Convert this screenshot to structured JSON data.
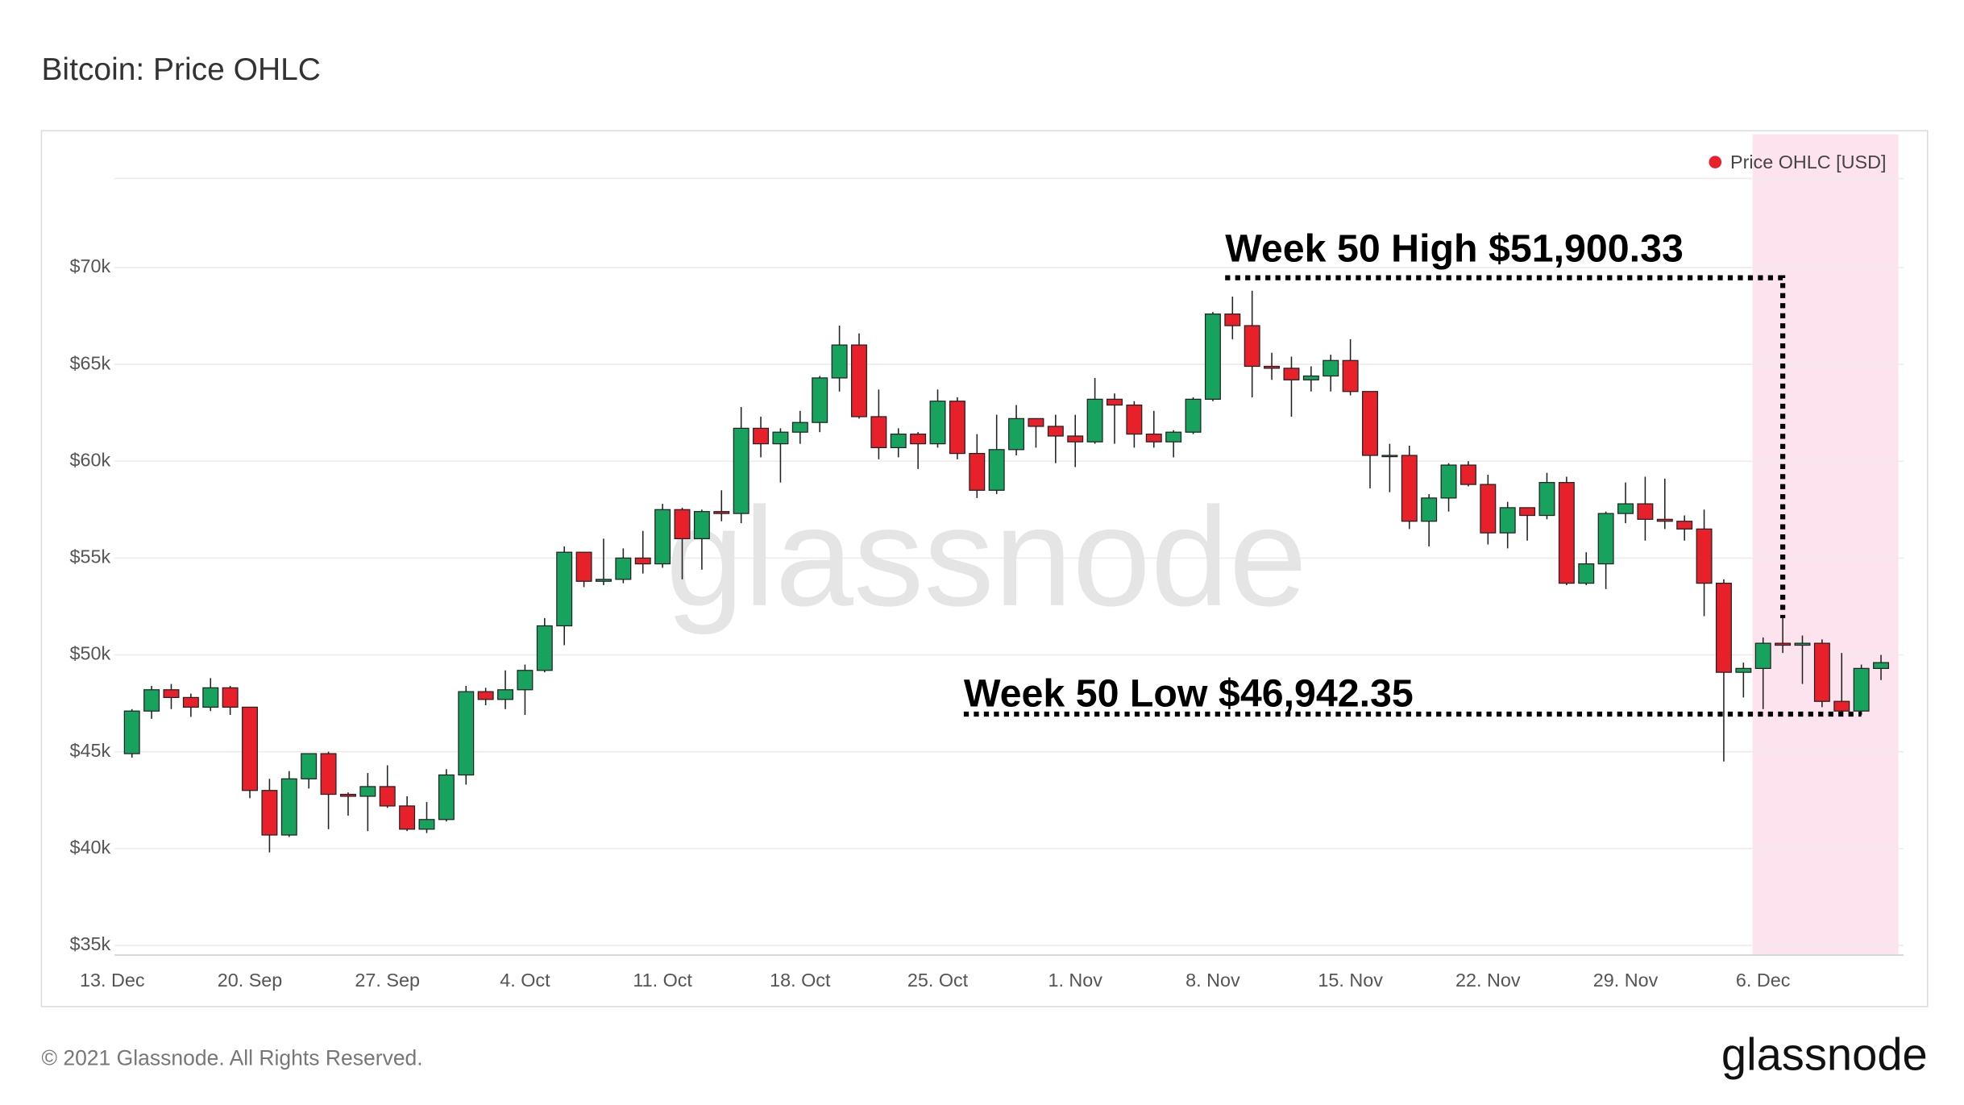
{
  "chart_data": {
    "type": "candlestick",
    "title": "Bitcoin: Price OHLC",
    "watermark": "glassnode",
    "footer": "© 2021 Glassnode. All Rights Reserved.",
    "logo": "glassnode",
    "x": [
      "14. Sep",
      "15. Sep",
      "16. Sep",
      "17. Sep",
      "18. Sep",
      "19. Sep",
      "20. Sep",
      "21. Sep",
      "22. Sep",
      "23. Sep",
      "24. Sep",
      "25. Sep",
      "26. Sep",
      "27. Sep",
      "28. Sep",
      "29. Sep",
      "30. Sep",
      "1. Oct",
      "2. Oct",
      "3. Oct",
      "4. Oct",
      "5. Oct",
      "6. Oct",
      "7. Oct",
      "8. Oct",
      "9. Oct",
      "10. Oct",
      "11. Oct",
      "12. Oct",
      "13. Oct",
      "14. Oct",
      "15. Oct",
      "16. Oct",
      "17. Oct",
      "18. Oct",
      "19. Oct",
      "20. Oct",
      "21. Oct",
      "22. Oct",
      "23. Oct",
      "24. Oct",
      "25. Oct",
      "26. Oct",
      "27. Oct",
      "28. Oct",
      "29. Oct",
      "30. Oct",
      "31. Oct",
      "1. Nov",
      "2. Nov",
      "3. Nov",
      "4. Nov",
      "5. Nov",
      "6. Nov",
      "7. Nov",
      "8. Nov",
      "9. Nov",
      "10. Nov",
      "11. Nov",
      "12. Nov",
      "13. Nov",
      "14. Nov",
      "15. Nov",
      "16. Nov",
      "17. Nov",
      "18. Nov",
      "19. Nov",
      "20. Nov",
      "21. Nov",
      "22. Nov",
      "23. Nov",
      "24. Nov",
      "25. Nov",
      "26. Nov",
      "27. Nov",
      "28. Nov",
      "29. Nov",
      "30. Nov",
      "1. Dec",
      "2. Dec",
      "3. Dec",
      "4. Dec",
      "5. Dec",
      "6. Dec",
      "7. Dec",
      "8. Dec",
      "9. Dec",
      "10. Dec",
      "11. Dec",
      "12. Dec"
    ],
    "series": [
      {
        "name": "Price OHLC [USD]",
        "color": "#e8202a",
        "up_color": "#17a35e",
        "open": [
          44900,
          47100,
          48200,
          47800,
          47300,
          48300,
          47300,
          43000,
          40700,
          43600,
          44900,
          42800,
          42700,
          43200,
          42200,
          41000,
          41500,
          43800,
          48100,
          47700,
          48200,
          49200,
          51500,
          55300,
          53800,
          53900,
          55000,
          54700,
          57500,
          56000,
          57400,
          57300,
          61700,
          60900,
          61500,
          62000,
          64300,
          66000,
          62300,
          60700,
          61400,
          60900,
          63100,
          60400,
          58500,
          60600,
          62200,
          61800,
          61300,
          61000,
          63200,
          62900,
          61400,
          61000,
          61500,
          63200,
          67600,
          67000,
          64900,
          64800,
          64200,
          64400,
          65200,
          63600,
          60300,
          60300,
          56900,
          58100,
          59800,
          58800,
          56300,
          57600,
          57200,
          58900,
          53700,
          54700,
          57300,
          57800,
          57000,
          56900,
          56500,
          53700,
          49100,
          49300,
          50600,
          50500,
          50600,
          47600,
          47100,
          49300
        ],
        "high": [
          47200,
          48400,
          48500,
          48000,
          48800,
          48400,
          47300,
          43600,
          44000,
          44900,
          45000,
          42900,
          43900,
          44300,
          42700,
          42400,
          44100,
          48400,
          48300,
          49200,
          49500,
          51900,
          55600,
          55300,
          56000,
          55500,
          56400,
          57800,
          57600,
          57500,
          58500,
          62800,
          62300,
          61700,
          62600,
          64400,
          67000,
          66600,
          63700,
          61700,
          61500,
          63700,
          63300,
          61400,
          62400,
          62900,
          62200,
          62400,
          62400,
          64300,
          63500,
          63100,
          62600,
          61600,
          63300,
          67700,
          68500,
          68800,
          65600,
          65400,
          64900,
          65500,
          66300,
          63600,
          60900,
          60800,
          58300,
          59900,
          60000,
          59300,
          57900,
          57600,
          59400,
          59200,
          55300,
          57400,
          58900,
          59200,
          59100,
          57200,
          57500,
          53900,
          49600,
          50900,
          51900,
          51000,
          50800,
          50100,
          49500,
          50000
        ],
        "low": [
          44700,
          46700,
          47200,
          46800,
          47100,
          46900,
          42600,
          39800,
          40600,
          43100,
          41000,
          41700,
          40900,
          42100,
          40900,
          40800,
          41400,
          43300,
          47400,
          47200,
          46900,
          49100,
          50500,
          53500,
          53600,
          53700,
          54200,
          54500,
          53900,
          54400,
          56900,
          56800,
          60200,
          58900,
          60900,
          61500,
          63600,
          62200,
          60100,
          60200,
          59600,
          60700,
          60100,
          58100,
          58300,
          60300,
          60700,
          59900,
          59700,
          60900,
          60900,
          60700,
          60700,
          60200,
          61400,
          63100,
          66300,
          63300,
          64200,
          62300,
          63600,
          63600,
          63400,
          58600,
          58400,
          56500,
          55600,
          57400,
          58700,
          55700,
          55500,
          55900,
          57000,
          53600,
          53600,
          53400,
          56800,
          55900,
          56500,
          55900,
          52000,
          44500,
          47800,
          47200,
          50100,
          48500,
          47300,
          47000,
          46900,
          48700
        ],
        "close": [
          47100,
          48200,
          47800,
          47300,
          48300,
          47300,
          43000,
          40700,
          43600,
          44900,
          42800,
          42700,
          43200,
          42200,
          41000,
          41500,
          43800,
          48100,
          47700,
          48200,
          49200,
          51500,
          55300,
          53800,
          53900,
          55000,
          54700,
          57500,
          56000,
          57400,
          57300,
          61700,
          60900,
          61500,
          62000,
          64300,
          66000,
          62300,
          60700,
          61400,
          60900,
          63100,
          60400,
          58500,
          60600,
          62200,
          61800,
          61300,
          61000,
          63200,
          62900,
          61400,
          61000,
          61500,
          63200,
          67600,
          67000,
          64900,
          64800,
          64200,
          64400,
          65200,
          63600,
          60300,
          60300,
          56900,
          58100,
          59800,
          58800,
          56300,
          57600,
          57200,
          58900,
          53700,
          54700,
          57300,
          57800,
          57000,
          56900,
          56500,
          53700,
          49100,
          49300,
          50600,
          50500,
          50600,
          47600,
          47100,
          49300,
          49600
        ]
      }
    ],
    "ylim": [
      34500,
      74600
    ],
    "yticks": [
      {
        "value": 35000,
        "label": "$35k"
      },
      {
        "value": 40000,
        "label": "$40k"
      },
      {
        "value": 45000,
        "label": "$45k"
      },
      {
        "value": 50000,
        "label": "$50k"
      },
      {
        "value": 55000,
        "label": "$55k"
      },
      {
        "value": 60000,
        "label": "$60k"
      },
      {
        "value": 65000,
        "label": "$65k"
      },
      {
        "value": 70000,
        "label": "$70k"
      }
    ],
    "xticks": [
      "20. Sep",
      "27. Sep",
      "4. Oct",
      "11. Oct",
      "18. Oct",
      "25. Oct",
      "1. Nov",
      "8. Nov",
      "15. Nov",
      "22. Nov",
      "29. Nov",
      "6. Dec",
      "13. Dec"
    ],
    "grid": true,
    "legend": "top-right",
    "highlight": {
      "from": "6. Dec",
      "to": "12. Dec",
      "color": "#fde3ee"
    },
    "annotations": [
      {
        "label": "Week 50 High $51,900.33",
        "value": 51900.33,
        "x": "7. Dec"
      },
      {
        "label": "Week 50 Low $46,942.35",
        "value": 46942.35,
        "x": "11. Dec"
      }
    ]
  }
}
